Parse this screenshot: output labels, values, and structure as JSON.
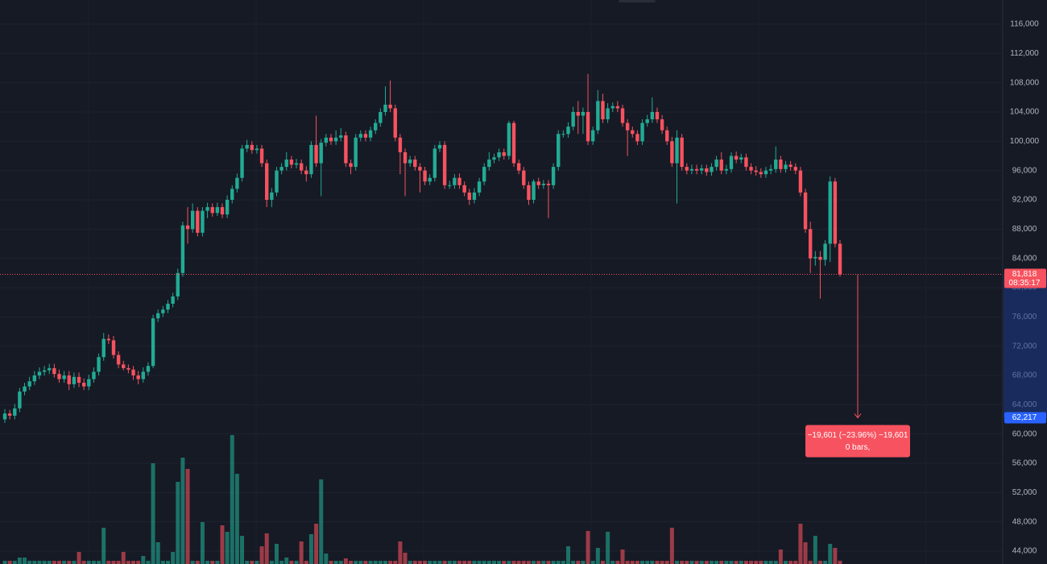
{
  "chart_data": {
    "type": "candlestick",
    "up_color": "#22ab94",
    "down_color": "#f7525f",
    "grid": true,
    "ylim": [
      42236,
      119303
    ],
    "yticks": [
      {
        "value": 44000,
        "label": "44,000"
      },
      {
        "value": 48000,
        "label": "48,000"
      },
      {
        "value": 52000,
        "label": "52,000"
      },
      {
        "value": 56000,
        "label": "56,000"
      },
      {
        "value": 60000,
        "label": "60,000"
      },
      {
        "value": 64000,
        "label": "64,000"
      },
      {
        "value": 68000,
        "label": "68,000"
      },
      {
        "value": 72000,
        "label": "72,000"
      },
      {
        "value": 76000,
        "label": "76,000"
      },
      {
        "value": 80000,
        "label": "80,000"
      },
      {
        "value": 84000,
        "label": "84,000"
      },
      {
        "value": 88000,
        "label": "88,000"
      },
      {
        "value": 92000,
        "label": "92,000"
      },
      {
        "value": 96000,
        "label": "96,000"
      },
      {
        "value": 100000,
        "label": "100,000"
      },
      {
        "value": 104000,
        "label": "104,000"
      },
      {
        "value": 108000,
        "label": "108,000"
      },
      {
        "value": 112000,
        "label": "112,000"
      },
      {
        "value": 116000,
        "label": "116,000"
      }
    ],
    "open": [
      62000,
      62800,
      62500,
      63500,
      65800,
      66500,
      67200,
      68000,
      68500,
      68700,
      69000,
      68200,
      67500,
      68000,
      66800,
      67800,
      67000,
      66500,
      67500,
      68500,
      70500,
      73000,
      72800,
      70800,
      69500,
      69000,
      68800,
      68000,
      67500,
      68500,
      69300,
      75800,
      76500,
      77000,
      77800,
      78800,
      82000,
      88500,
      88000,
      90500,
      87500,
      90500,
      91000,
      90200,
      91000,
      90000,
      92000,
      93500,
      95000,
      99000,
      99500,
      98800,
      99000,
      97000,
      92000,
      93000,
      96000,
      96500,
      97500,
      96800,
      97000,
      96000,
      95500,
      99500,
      97000,
      99800,
      100500,
      100000,
      100500,
      100800,
      97000,
      96500,
      100500,
      101000,
      100500,
      101500,
      102500,
      104000,
      105000,
      104500,
      100500,
      98500,
      97000,
      97500,
      96500,
      96000,
      94500,
      95000,
      99000,
      99500,
      94000,
      94000,
      95000,
      94000,
      93000,
      92000,
      93000,
      94500,
      96500,
      97500,
      97800,
      98500,
      98000,
      102500,
      97000,
      96000,
      94000,
      92000,
      94500,
      94000,
      94200,
      94000,
      96500,
      101000,
      101000,
      102000,
      104000,
      103500,
      104000,
      100000,
      101500,
      105500,
      103000,
      104500,
      104800,
      104500,
      102500,
      101500,
      101000,
      100000,
      102500,
      103000,
      104000,
      103000,
      101500,
      100000,
      97000,
      100500,
      96500,
      96000,
      96200,
      96000,
      96300,
      95800,
      96500,
      97500,
      96000,
      96200,
      98000,
      97500,
      97800,
      96500,
      96000,
      95800,
      95500,
      96000,
      96200,
      97500,
      96200,
      96800,
      96500,
      96000,
      93000,
      88000,
      84000,
      84200,
      83800,
      86000,
      94500,
      86000
    ],
    "high": [
      63400,
      63300,
      64100,
      66300,
      67000,
      67800,
      68600,
      69100,
      69300,
      69600,
      69600,
      68800,
      68600,
      68600,
      68400,
      68400,
      67600,
      68100,
      69100,
      71000,
      73800,
      73600,
      73400,
      71300,
      70000,
      69500,
      69300,
      68600,
      69100,
      69800,
      76300,
      77000,
      77500,
      78300,
      79300,
      82600,
      89000,
      91000,
      91500,
      91000,
      91000,
      91600,
      91500,
      91600,
      91500,
      92600,
      94000,
      95600,
      99500,
      100200,
      100000,
      99500,
      99500,
      97500,
      93600,
      96500,
      97000,
      98500,
      98000,
      97600,
      97500,
      96600,
      100000,
      103500,
      100300,
      101000,
      101000,
      101500,
      101800,
      101300,
      97500,
      101000,
      101500,
      101500,
      102000,
      103000,
      104500,
      107500,
      108300,
      105000,
      101000,
      99000,
      98000,
      98000,
      97000,
      96500,
      95500,
      99500,
      100000,
      100000,
      94600,
      95500,
      95600,
      94500,
      93500,
      93600,
      95000,
      97000,
      98500,
      98300,
      99000,
      99000,
      102800,
      102800,
      97500,
      96500,
      94500,
      94800,
      95000,
      94700,
      94700,
      97000,
      101500,
      101500,
      102600,
      104700,
      105500,
      104600,
      109200,
      102000,
      107000,
      106500,
      105200,
      105300,
      105500,
      105000,
      103000,
      102000,
      101500,
      103000,
      103600,
      106000,
      104600,
      103600,
      102000,
      100600,
      101500,
      101000,
      97000,
      96800,
      96800,
      96800,
      96800,
      97000,
      98000,
      98500,
      96800,
      98500,
      98600,
      98300,
      98300,
      97000,
      96600,
      96300,
      96500,
      96800,
      99300,
      98000,
      97300,
      97300,
      97000,
      96500,
      93500,
      89000,
      85000,
      85000,
      86500,
      95200,
      95000,
      86500
    ],
    "low": [
      61500,
      62000,
      62000,
      63000,
      65300,
      66000,
      66700,
      67500,
      68000,
      68200,
      67700,
      67000,
      67000,
      66000,
      66300,
      66400,
      66000,
      66000,
      67000,
      68000,
      70000,
      72300,
      70300,
      69000,
      68700,
      68300,
      67400,
      66800,
      67000,
      68000,
      69000,
      75300,
      76000,
      76500,
      77300,
      78300,
      81500,
      86000,
      87500,
      87000,
      87000,
      89500,
      89700,
      89800,
      89500,
      89500,
      91500,
      93000,
      94500,
      98500,
      98300,
      98300,
      96500,
      91000,
      91000,
      92500,
      95500,
      96000,
      96300,
      96300,
      95500,
      94500,
      95000,
      96500,
      92500,
      99300,
      99500,
      99500,
      100000,
      96500,
      95500,
      96000,
      100000,
      100000,
      100000,
      101000,
      102000,
      103500,
      104000,
      100000,
      95500,
      92500,
      96500,
      96000,
      93000,
      94000,
      94000,
      94500,
      98500,
      93500,
      93500,
      93500,
      93500,
      92500,
      91300,
      91500,
      92500,
      94000,
      96000,
      97000,
      97300,
      97500,
      97500,
      96500,
      95500,
      93500,
      91300,
      91500,
      93500,
      93500,
      89500,
      93500,
      96000,
      100500,
      100500,
      101500,
      101000,
      101000,
      99500,
      99500,
      101000,
      102500,
      102500,
      104000,
      104000,
      102000,
      98000,
      100500,
      99500,
      99500,
      102000,
      102500,
      102500,
      101000,
      99500,
      96500,
      91500,
      96000,
      95500,
      95500,
      95500,
      95500,
      95300,
      95300,
      96000,
      95500,
      95500,
      95700,
      97000,
      97000,
      96000,
      95500,
      95300,
      95000,
      95000,
      95500,
      95700,
      95700,
      95700,
      96000,
      95500,
      92500,
      87500,
      82000,
      83000,
      78500,
      83000,
      83500,
      85500,
      81500
    ],
    "close": [
      62800,
      62500,
      63500,
      65800,
      66500,
      67200,
      68000,
      68500,
      68700,
      69000,
      68200,
      67500,
      68000,
      66800,
      67800,
      67000,
      66500,
      67500,
      68500,
      70500,
      73000,
      72800,
      70800,
      69500,
      69000,
      68800,
      68000,
      67500,
      68500,
      69300,
      75800,
      76500,
      77000,
      77800,
      78800,
      82000,
      88500,
      88000,
      90500,
      87500,
      90500,
      91000,
      90200,
      91000,
      90000,
      92000,
      93500,
      95000,
      99000,
      99500,
      98800,
      99000,
      97000,
      92000,
      93000,
      96000,
      96500,
      97500,
      96800,
      97000,
      96000,
      95500,
      99500,
      97000,
      99800,
      100500,
      100000,
      100500,
      100800,
      97000,
      96500,
      100500,
      101000,
      100500,
      101500,
      102500,
      104000,
      105000,
      104500,
      100500,
      98500,
      97000,
      97500,
      96500,
      96000,
      94500,
      95000,
      99000,
      99500,
      94000,
      94000,
      95000,
      94000,
      93000,
      92000,
      93000,
      94500,
      96500,
      97500,
      97800,
      98500,
      98000,
      102500,
      97000,
      96000,
      94000,
      92000,
      94500,
      94000,
      94200,
      94000,
      96500,
      101000,
      101000,
      102000,
      104000,
      103500,
      104000,
      100000,
      101500,
      105500,
      103000,
      104500,
      104800,
      104500,
      102500,
      101500,
      101000,
      100000,
      102500,
      103000,
      104000,
      103000,
      101500,
      100000,
      97000,
      100500,
      96500,
      96000,
      96200,
      96000,
      96300,
      95800,
      96500,
      97500,
      96000,
      96200,
      98000,
      97500,
      97800,
      96500,
      96000,
      95800,
      95500,
      96000,
      96200,
      97500,
      96200,
      96800,
      96500,
      96000,
      93000,
      88000,
      84000,
      84200,
      83800,
      86000,
      94500,
      86000,
      81818
    ],
    "volume": [
      4,
      4,
      4,
      8,
      8,
      4,
      4,
      4,
      4,
      4,
      4,
      4,
      4,
      4,
      4,
      15,
      4,
      4,
      4,
      4,
      45,
      4,
      4,
      4,
      15,
      4,
      4,
      4,
      10,
      4,
      125,
      27,
      4,
      4,
      15,
      102,
      132,
      118,
      4,
      4,
      52,
      4,
      4,
      4,
      48,
      40,
      160,
      112,
      35,
      4,
      4,
      4,
      22,
      38,
      4,
      25,
      4,
      8,
      4,
      4,
      28,
      4,
      37,
      50,
      105,
      13,
      4,
      4,
      4,
      7,
      4,
      4,
      4,
      4,
      4,
      4,
      4,
      4,
      4,
      4,
      28,
      14,
      4,
      4,
      4,
      4,
      4,
      4,
      4,
      4,
      4,
      4,
      4,
      4,
      4,
      4,
      4,
      4,
      4,
      4,
      4,
      4,
      4,
      4,
      4,
      4,
      4,
      4,
      4,
      4,
      4,
      4,
      4,
      4,
      22,
      4,
      4,
      4,
      41,
      4,
      20,
      4,
      40,
      4,
      4,
      18,
      4,
      4,
      4,
      4,
      4,
      4,
      4,
      4,
      4,
      45,
      4,
      4,
      4,
      4,
      4,
      4,
      4,
      4,
      4,
      4,
      4,
      4,
      4,
      4,
      4,
      4,
      4,
      4,
      4,
      4,
      4,
      18,
      4,
      4,
      4,
      50,
      27,
      4,
      35,
      4,
      4,
      25,
      20,
      4
    ],
    "last_price": {
      "value": 81818,
      "label": "81,818"
    },
    "countdown": "08:35:17",
    "measure": {
      "target": {
        "value": 62217,
        "label": "62,217"
      },
      "text": "−19,601 (−23.96%) −19,601",
      "bars": "0 bars,"
    }
  }
}
